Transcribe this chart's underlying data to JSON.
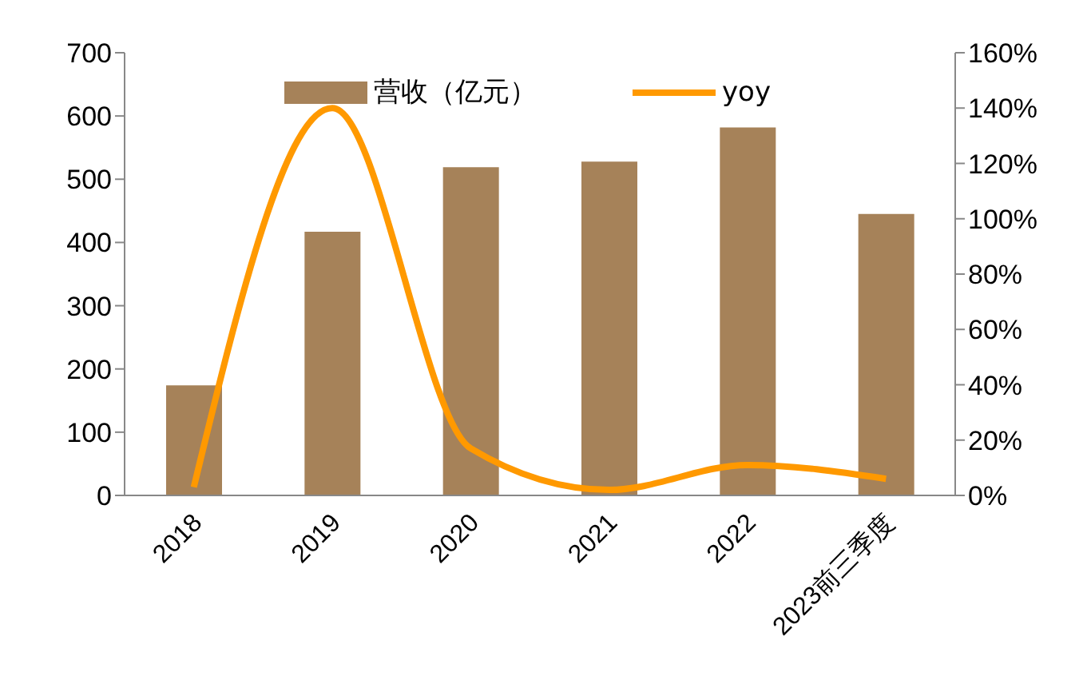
{
  "chart_data": {
    "type": "bar",
    "categories": [
      "2018",
      "2019",
      "2020",
      "2021",
      "2022",
      "2023前三季度"
    ],
    "series": [
      {
        "name": "营收（亿元）",
        "color": "#a68259",
        "values": [
          174,
          417,
          519,
          528,
          582,
          445
        ]
      },
      {
        "name": "yoy",
        "type": "line",
        "axis": "y2",
        "color": "#ff9900",
        "values": [
          3,
          140,
          17,
          2,
          11,
          6
        ]
      }
    ],
    "ylim": [
      0,
      700
    ],
    "yticks": [
      0,
      100,
      200,
      300,
      400,
      500,
      600,
      700
    ],
    "y2lim": [
      0,
      160
    ],
    "y2ticks": [
      {
        "value": 0,
        "label": "0%"
      },
      {
        "value": 20,
        "label": "20%"
      },
      {
        "value": 40,
        "label": "40%"
      },
      {
        "value": 60,
        "label": "60%"
      },
      {
        "value": 80,
        "label": "80%"
      },
      {
        "value": 100,
        "label": "100%"
      },
      {
        "value": 120,
        "label": "120%"
      },
      {
        "value": 140,
        "label": "140%"
      },
      {
        "value": 160,
        "label": "160%"
      }
    ],
    "legend": "top",
    "grid": false,
    "marker": "none",
    "line_style": "solid"
  }
}
